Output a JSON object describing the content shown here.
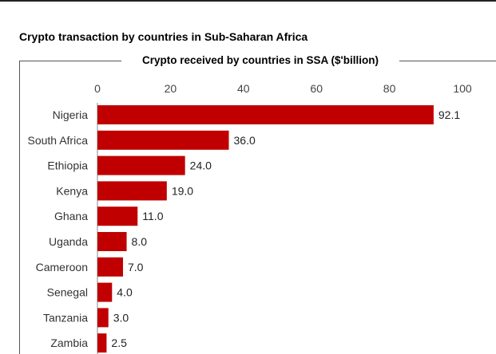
{
  "figure_title": "Crypto transaction by countries in Sub-Saharan Africa",
  "colors": {
    "accent": "#c00000",
    "bar": "#c00000"
  },
  "chart_data": {
    "type": "bar",
    "orientation": "horizontal",
    "title": "Crypto received by countries in SSA ($'billion)",
    "categories": [
      "Nigeria",
      "South Africa",
      "Ethiopia",
      "Kenya",
      "Ghana",
      "Uganda",
      "Cameroon",
      "Senegal",
      "Tanzania",
      "Zambia"
    ],
    "values": [
      92.1,
      36.0,
      24.0,
      19.0,
      11.0,
      8.0,
      7.0,
      4.0,
      3.0,
      2.5
    ],
    "value_labels": [
      "92.1",
      "36.0",
      "24.0",
      "19.0",
      "11.0",
      "8.0",
      "7.0",
      "4.0",
      "3.0",
      "2.5"
    ],
    "xlim": [
      0,
      100
    ],
    "ticks": [
      0,
      20,
      40,
      60,
      80,
      100
    ],
    "tick_labels": [
      "0",
      "20",
      "40",
      "60",
      "80",
      "100"
    ],
    "axis_position": "top",
    "grid": false,
    "legend": false
  }
}
